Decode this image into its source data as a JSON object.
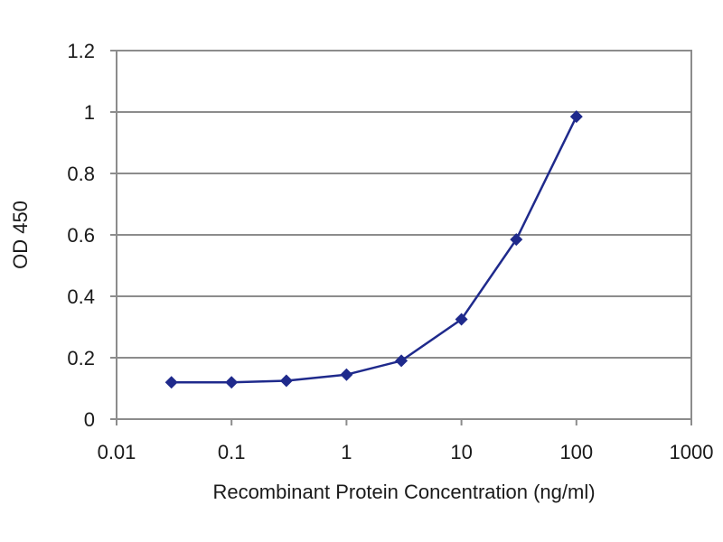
{
  "chart_data": {
    "type": "line",
    "title": "",
    "xlabel": "Recombinant Protein Concentration (ng/ml)",
    "ylabel": "OD 450",
    "x_scale": "log",
    "xlim": [
      0.01,
      1000
    ],
    "ylim": [
      0,
      1.2
    ],
    "x_ticks": [
      0.01,
      0.1,
      1,
      10,
      100,
      1000
    ],
    "x_tick_labels": [
      "0.01",
      "0.1",
      "1",
      "10",
      "100",
      "1000"
    ],
    "y_ticks": [
      0,
      0.2,
      0.4,
      0.6,
      0.8,
      1,
      1.2
    ],
    "y_tick_labels": [
      "0",
      "0.2",
      "0.4",
      "0.6",
      "0.8",
      "1",
      "1.2"
    ],
    "grid": "horizontal",
    "legend": "none",
    "series": [
      {
        "color": "#1f2a8c",
        "marker": "diamond",
        "x": [
          0.03,
          0.1,
          0.3,
          1,
          3,
          10,
          30,
          100
        ],
        "y": [
          0.12,
          0.12,
          0.125,
          0.145,
          0.19,
          0.325,
          0.585,
          0.985
        ]
      }
    ]
  }
}
